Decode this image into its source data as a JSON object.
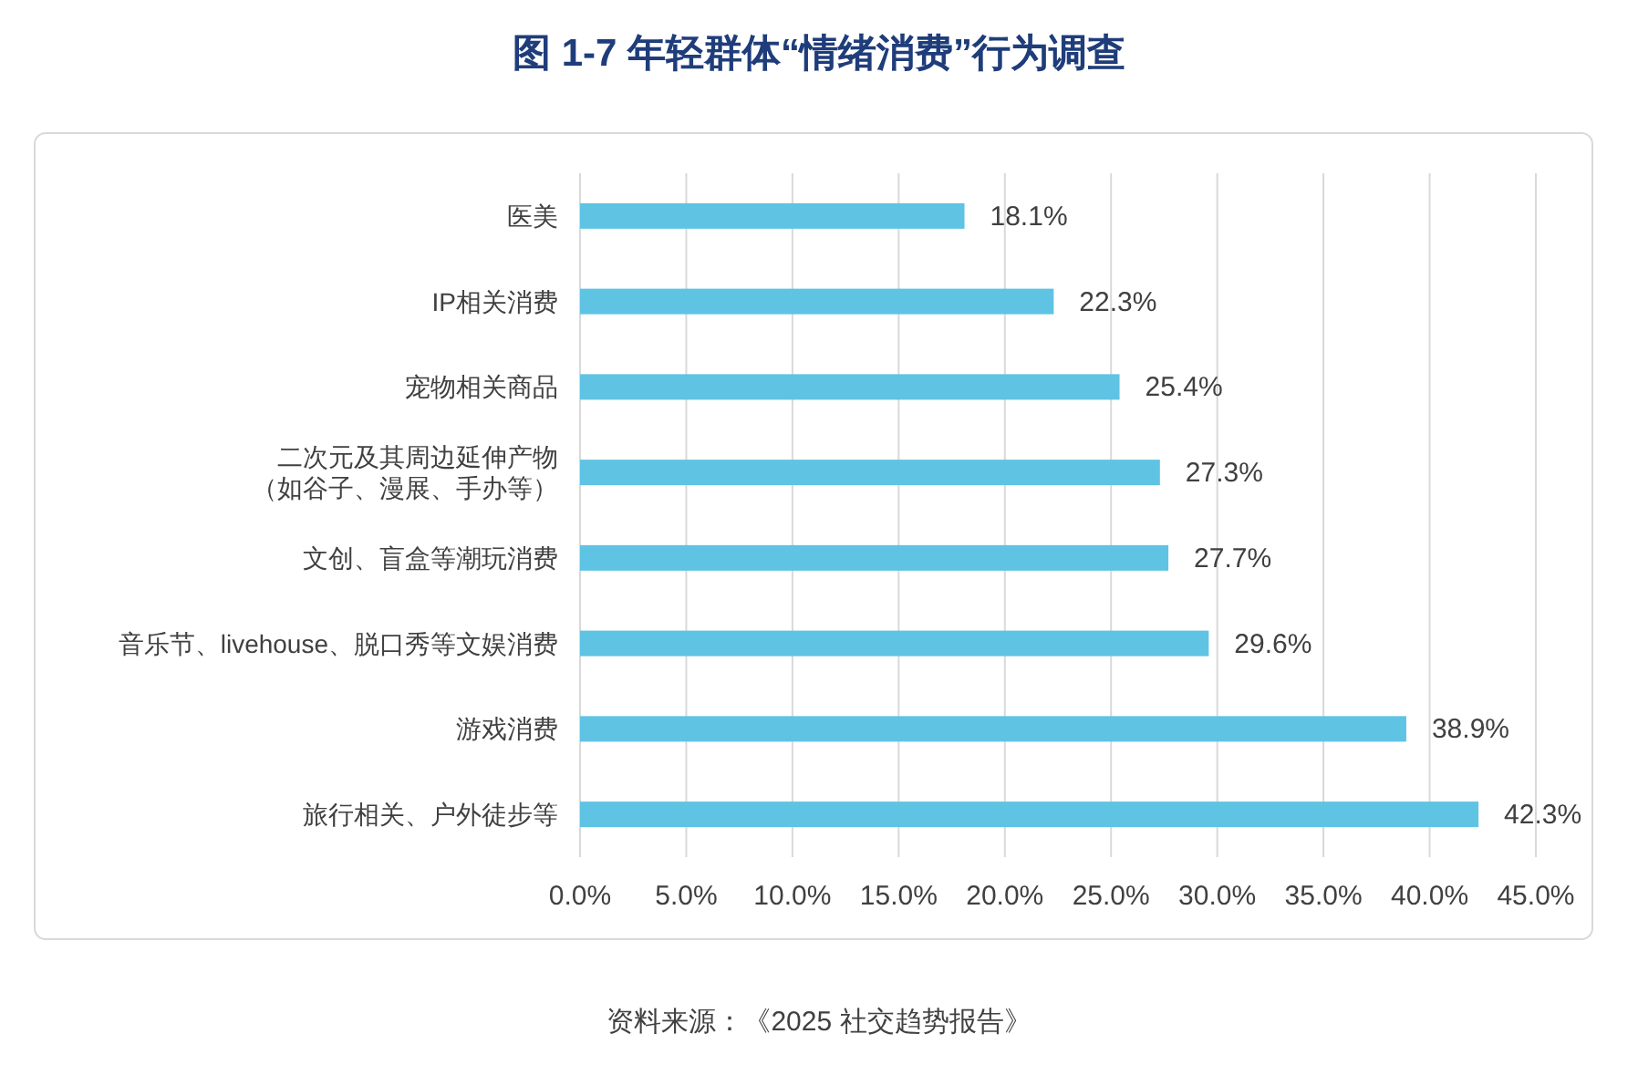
{
  "chart_data": {
    "type": "bar",
    "orientation": "horizontal",
    "title": "图 1-7 年轻群体“情绪消费”行为调查",
    "categories": [
      "医美",
      "IP相关消费",
      "宠物相关商品",
      "二次元及其周边延伸产物（如谷子、漫展、手办等）",
      "文创、盲盒等潮玩消费",
      "音乐节、livehouse、脱口秀等文娱消费",
      "游戏消费",
      "旅行相关、户外徒步等"
    ],
    "values": [
      18.1,
      22.3,
      25.4,
      27.3,
      27.7,
      29.6,
      38.9,
      42.3
    ],
    "value_labels": [
      "18.1%",
      "22.3%",
      "25.4%",
      "27.3%",
      "27.7%",
      "29.6%",
      "38.9%",
      "42.3%"
    ],
    "color": "#5fc3e4",
    "xlim": [
      0,
      45
    ],
    "xticks": [
      {
        "value": 0,
        "label": "0.0%"
      },
      {
        "value": 5,
        "label": "5.0%"
      },
      {
        "value": 10,
        "label": "10.0%"
      },
      {
        "value": 15,
        "label": "15.0%"
      },
      {
        "value": 20,
        "label": "20.0%"
      },
      {
        "value": 25,
        "label": "25.0%"
      },
      {
        "value": 30,
        "label": "30.0%"
      },
      {
        "value": 35,
        "label": "35.0%"
      },
      {
        "value": 40,
        "label": "40.0%"
      },
      {
        "value": 45,
        "label": "45.0%"
      }
    ],
    "grid": "x",
    "annotations": [
      "资料来源：《2025 社交趋势报告》"
    ]
  }
}
